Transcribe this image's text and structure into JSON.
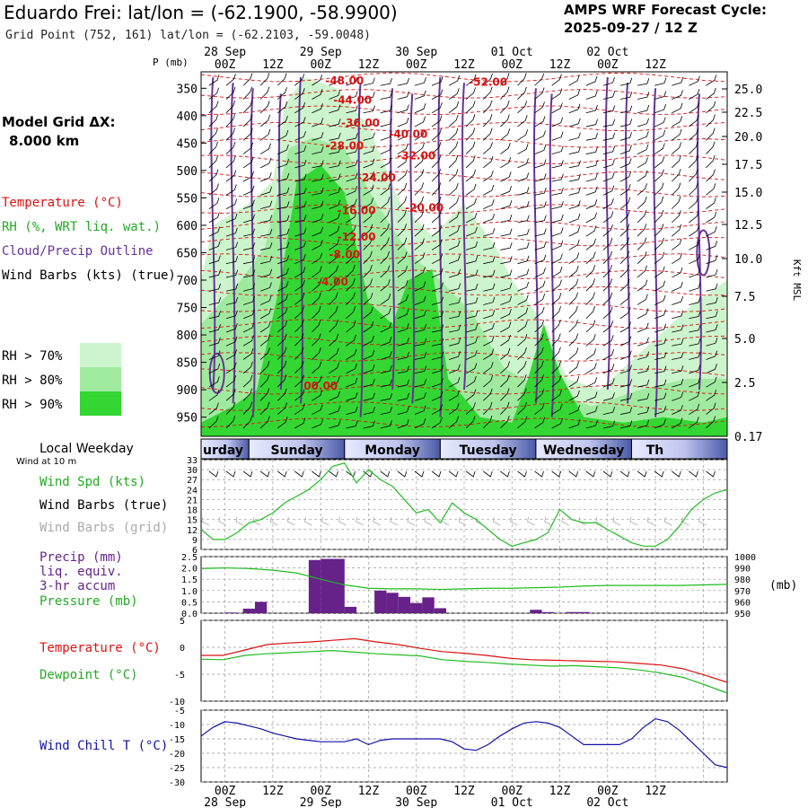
{
  "header": {
    "title": "Eduardo Frei:  lat/lon = (-62.1900, -58.9900)",
    "subtitle": "Grid Point (752, 161) lat/lon = (-62.2103, -59.0048)",
    "cycle_line1": "AMPS WRF Forecast Cycle:",
    "cycle_line2": "2025-09-27 / 12  Z",
    "grid_line1": "Model Grid ΔX:",
    "grid_line2": "8.000 km"
  },
  "colors": {
    "rh70": "#cdf5cd",
    "rh80": "#a0eaa0",
    "rh90": "#33d633",
    "temperature": "#dd1111",
    "cloud": "#663399",
    "wind": "#000000",
    "wind_grid": "#aaaaaa",
    "green": "#22bb22",
    "precip": "#662288",
    "windchill": "#1111aa"
  },
  "legend_upper": {
    "temperature": "Temperature (°C)",
    "rh": "RH (%, WRT liq. wat.)",
    "cloud": "Cloud/Precip Outline",
    "wind": "Wind Barbs (kts) (true)",
    "rh70": "RH > 70%",
    "rh80": "RH > 80%",
    "rh90": "RH > 90%"
  },
  "time_axis": {
    "hours": [
      "00Z",
      "12Z",
      "00Z",
      "12Z",
      "00Z",
      "12Z",
      "00Z",
      "12Z",
      "00Z",
      "12Z"
    ],
    "dates": [
      "28 Sep",
      "29 Sep",
      "30 Sep",
      "01 Oct",
      "02 Oct"
    ]
  },
  "weekday": {
    "label": "Local Weekday",
    "sublabel": "Wind at 10 m",
    "days": [
      "urday",
      "Sunday",
      "Monday",
      "Tuesday",
      "Wednesday",
      "Th"
    ]
  },
  "chart_data": [
    {
      "type": "heatmap",
      "name": "cross_section",
      "ylabel_left": "P (mb)",
      "ylabel_right": "Kft MSL",
      "pressure_ticks": [
        350,
        400,
        450,
        500,
        550,
        600,
        650,
        700,
        750,
        800,
        850,
        900,
        950
      ],
      "height_ticks": [
        "25.0",
        "22.5",
        "20.0",
        "17.5",
        "15.0",
        "12.5",
        "10.0",
        "7.5",
        "5.0",
        "2.5",
        "0.17"
      ],
      "temperature_labels": [
        "-48.00",
        "-44.00",
        "-36.00",
        "-28.00",
        "-24.00",
        "-16.00",
        "-12.00",
        "-8.00",
        "-4.00",
        "00.00",
        "-40.00",
        "-32.00",
        "-20.00",
        "-52.00"
      ],
      "x_hours": [
        -6,
        126
      ],
      "y_pressure": [
        320,
        985
      ]
    },
    {
      "type": "line",
      "name": "wind_speed",
      "label": "Wind Spd (kts)",
      "label2": "Wind Barbs (true)",
      "label3": "Wind Barbs (grid)",
      "y_ticks": [
        6,
        9,
        12,
        15,
        18,
        21,
        24,
        27,
        30,
        33
      ],
      "ylim": [
        6,
        33
      ],
      "x": [
        -6,
        -3,
        0,
        3,
        6,
        9,
        12,
        15,
        18,
        21,
        24,
        27,
        30,
        33,
        36,
        39,
        42,
        45,
        48,
        51,
        54,
        57,
        60,
        63,
        66,
        69,
        72,
        75,
        78,
        81,
        84,
        87,
        90,
        93,
        96,
        99,
        102,
        105,
        108,
        111,
        114,
        117,
        120,
        123,
        126
      ],
      "values": [
        12,
        9,
        9,
        11,
        14,
        15,
        17,
        20,
        22,
        24,
        27,
        31,
        32,
        26,
        30,
        27,
        25,
        21,
        17,
        18,
        14,
        20,
        17,
        15,
        12,
        9,
        7,
        8,
        9,
        11,
        18,
        15,
        14,
        14,
        12,
        10,
        8,
        7,
        7,
        9,
        13,
        18,
        21,
        23,
        24
      ]
    },
    {
      "type": "bar",
      "name": "precip_pressure",
      "label1": "Precip (mm)",
      "label2": "liq. equiv.",
      "label3": "3-hr accum",
      "label4": "Pressure (mb)",
      "unit_right": "(mb)",
      "y_ticks": [
        "0.0",
        "0.5",
        "1.0",
        "1.5",
        "2.0",
        "2.5"
      ],
      "ylim": [
        0,
        2.5
      ],
      "y2_ticks": [
        950,
        960,
        970,
        980,
        990,
        1000
      ],
      "y2lim": [
        950,
        1000
      ],
      "precip": [
        {
          "x": 1.5,
          "v": 0.03
        },
        {
          "x": 6,
          "v": 0.2
        },
        {
          "x": 9,
          "v": 0.5
        },
        {
          "x": 22.5,
          "v": 2.35
        },
        {
          "x": 25.5,
          "v": 2.4
        },
        {
          "x": 28.5,
          "v": 2.4
        },
        {
          "x": 31.5,
          "v": 0.28
        },
        {
          "x": 39,
          "v": 1.0
        },
        {
          "x": 42,
          "v": 0.9
        },
        {
          "x": 45,
          "v": 0.72
        },
        {
          "x": 48,
          "v": 0.45
        },
        {
          "x": 51,
          "v": 0.7
        },
        {
          "x": 54,
          "v": 0.22
        },
        {
          "x": 78,
          "v": 0.15
        },
        {
          "x": 81,
          "v": 0.05
        },
        {
          "x": 87,
          "v": 0.05
        },
        {
          "x": 90,
          "v": 0.05
        }
      ],
      "pressure_x": [
        -6,
        0,
        6,
        12,
        18,
        24,
        30,
        36,
        42,
        48,
        54,
        60,
        66,
        72,
        78,
        84,
        90,
        96,
        102,
        108,
        114,
        120,
        126
      ],
      "pressure": [
        989.5,
        990,
        989.5,
        988,
        985.5,
        980,
        975,
        972,
        971.5,
        971.5,
        971,
        971.5,
        972,
        972,
        972.5,
        973,
        974,
        974.5,
        974.5,
        974.5,
        974.5,
        975,
        975.5
      ]
    },
    {
      "type": "line",
      "name": "temp_dewpoint",
      "series": [
        {
          "name": "Temperature (°C)",
          "values": [
            -1.5,
            -1.5,
            -0.5,
            0.5,
            0.8,
            1.0,
            1.3,
            1.6,
            1.0,
            0.5,
            -0.2,
            -0.8,
            -1.1,
            -1.5,
            -2.0,
            -2.3,
            -2.4,
            -2.5,
            -2.6,
            -2.7,
            -3.0,
            -3.3,
            -4.0,
            -5.2,
            -6.5
          ]
        },
        {
          "name": "Dewpoint (°C)",
          "values": [
            -2.2,
            -2.3,
            -1.5,
            -1.2,
            -1.0,
            -0.8,
            -0.6,
            -0.9,
            -1.2,
            -1.4,
            -1.6,
            -2.3,
            -2.6,
            -2.8,
            -3.1,
            -3.3,
            -3.5,
            -3.4,
            -3.6,
            -3.8,
            -4.2,
            -4.8,
            -5.6,
            -7.0,
            -8.5
          ]
        }
      ],
      "x": [
        -6,
        -0.5,
        5,
        10.5,
        16,
        21.5,
        27,
        32.5,
        38,
        43.5,
        49,
        54.5,
        60,
        65.5,
        71,
        76.5,
        82,
        87.5,
        93,
        98.5,
        104,
        109.5,
        115,
        120.5,
        126
      ],
      "y_ticks": [
        5,
        0,
        -5,
        -10
      ],
      "ylim": [
        -10,
        5
      ]
    },
    {
      "type": "line",
      "name": "wind_chill",
      "label": "Wind Chill T (°C)",
      "y_ticks": [
        -5,
        -10,
        -15,
        -20,
        -25,
        -30
      ],
      "ylim": [
        -30,
        -5
      ],
      "x": [
        -6,
        -3,
        0,
        3,
        6,
        9,
        12,
        15,
        18,
        21,
        24,
        27,
        30,
        33,
        36,
        39,
        42,
        45,
        48,
        51,
        54,
        57,
        60,
        63,
        66,
        69,
        72,
        75,
        78,
        81,
        84,
        87,
        90,
        93,
        96,
        99,
        102,
        105,
        108,
        111,
        114,
        117,
        120,
        123,
        126
      ],
      "values": [
        -14,
        -11,
        -9,
        -9.5,
        -10.5,
        -11.5,
        -13,
        -14,
        -15,
        -15.5,
        -16,
        -16,
        -16,
        -15,
        -17,
        -15.5,
        -15,
        -15,
        -15,
        -15,
        -15,
        -16,
        -18.5,
        -19,
        -17,
        -14,
        -11.5,
        -9.5,
        -9,
        -9.5,
        -11,
        -14,
        -17,
        -17,
        -17,
        -17,
        -15,
        -11,
        -8,
        -9,
        -12,
        -16,
        -20,
        -24,
        -25
      ]
    }
  ]
}
